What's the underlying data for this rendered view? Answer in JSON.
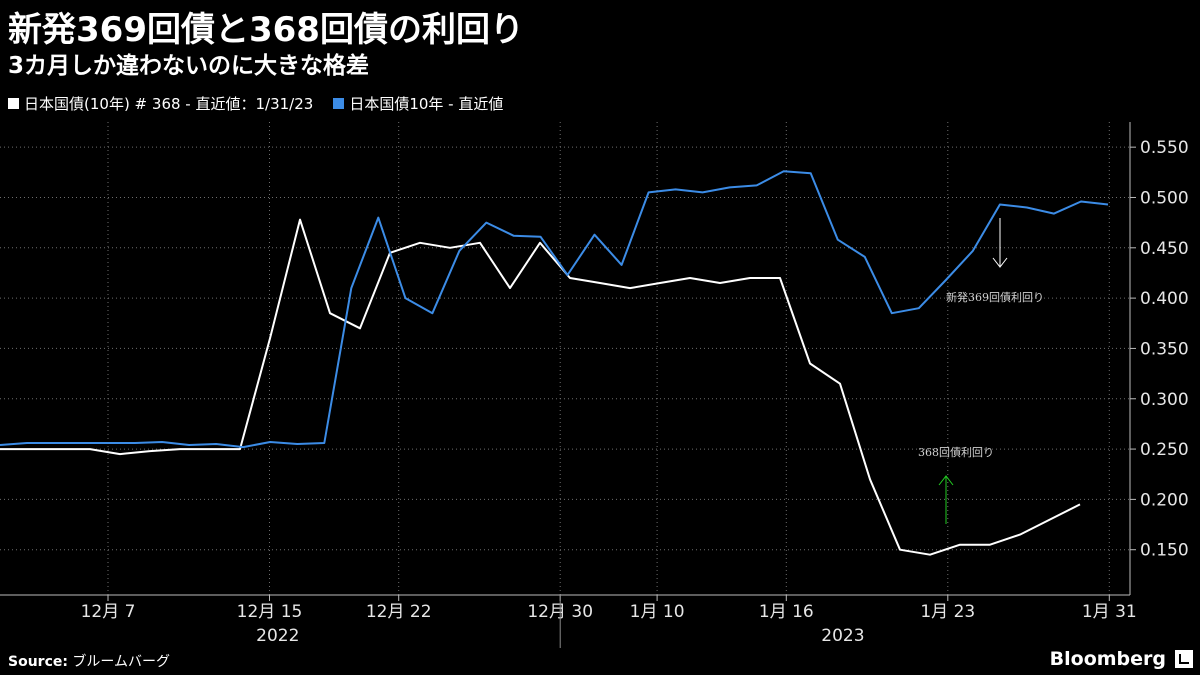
{
  "title": "新発369回債と368回債の利回り",
  "subtitle": "3カ月しか違わないのに大きな格差",
  "legend": [
    {
      "label": "日本国債(10年) # 368 - 直近値：1/31/23",
      "color": "#ffffff"
    },
    {
      "label": "日本国債10年 - 直近値",
      "color": "#3c8ce6"
    }
  ],
  "source_label": "Source:",
  "source_value": "ブルームバーグ",
  "brand": "Bloomberg",
  "chart_data": {
    "type": "line",
    "x_ticks": [
      {
        "i": 2,
        "label": "12月 7"
      },
      {
        "i": 7,
        "label": "12月 15"
      },
      {
        "i": 11,
        "label": "12月 22"
      },
      {
        "i": 16,
        "label": "12月 30"
      },
      {
        "i": 19,
        "label": "1月 10"
      },
      {
        "i": 23,
        "label": "1月 16"
      },
      {
        "i": 28,
        "label": "1月 23"
      },
      {
        "i": 33,
        "label": "1月 31"
      }
    ],
    "year_labels": [
      {
        "i": 8,
        "label": "2022"
      },
      {
        "i": 25,
        "label": "2023"
      }
    ],
    "year_divider_i": 16,
    "ylim": [
      0.105,
      0.575
    ],
    "y_ticks": [
      "0.150",
      "0.200",
      "0.250",
      "0.300",
      "0.350",
      "0.400",
      "0.450",
      "0.500",
      "0.550"
    ],
    "grid": true,
    "series": [
      {
        "name": "日本国債(10年) # 368",
        "color": "#ffffff",
        "values": [
          0.25,
          0.25,
          0.25,
          0.25,
          0.245,
          0.248,
          0.25,
          0.25,
          0.25,
          0.36,
          0.478,
          0.385,
          0.37,
          0.445,
          0.455,
          0.45,
          0.455,
          0.41,
          0.455,
          0.42,
          0.415,
          0.41,
          0.415,
          0.42,
          0.415,
          0.42,
          0.42,
          0.335,
          0.315,
          0.22,
          0.15,
          0.145,
          0.155,
          0.155,
          0.165,
          0.18,
          0.195
        ]
      },
      {
        "name": "日本国債10年",
        "color": "#3c8ce6",
        "values": [
          0.254,
          0.256,
          0.256,
          0.256,
          0.256,
          0.256,
          0.257,
          0.254,
          0.255,
          0.252,
          0.257,
          0.255,
          0.256,
          0.41,
          0.48,
          0.4,
          0.385,
          0.447,
          0.475,
          0.462,
          0.461,
          0.423,
          0.463,
          0.433,
          0.505,
          0.508,
          0.505,
          0.51,
          0.512,
          0.526,
          0.524,
          0.458,
          0.441,
          0.385,
          0.39,
          0.418,
          0.447,
          0.493,
          0.49,
          0.484,
          0.496,
          0.493
        ]
      }
    ],
    "annotations": [
      {
        "text": "新発369回債利回り",
        "color": "#ffffff"
      },
      {
        "text": "368回債利回り",
        "color": "#22cc22"
      }
    ]
  }
}
